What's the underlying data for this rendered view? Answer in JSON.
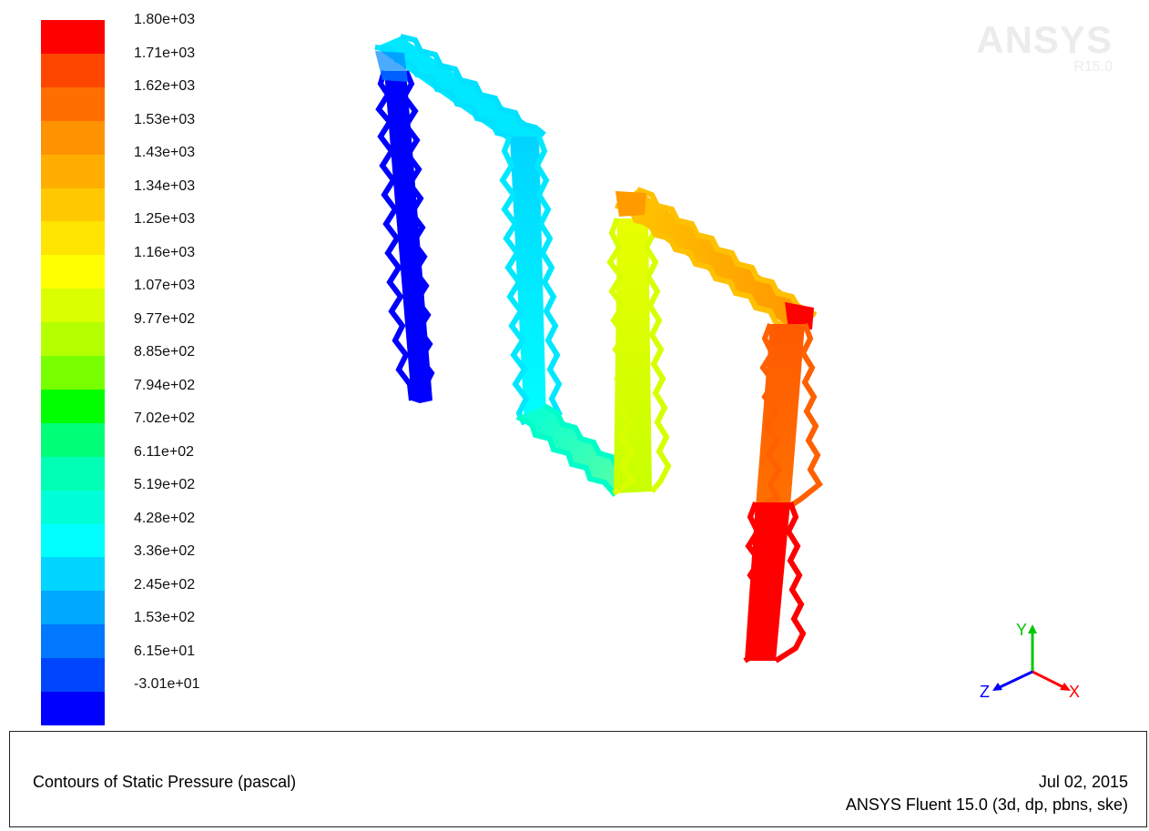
{
  "colorbar": {
    "labels": [
      "1.80e+03",
      "1.71e+03",
      "1.62e+03",
      "1.53e+03",
      "1.43e+03",
      "1.34e+03",
      "1.25e+03",
      "1.16e+03",
      "1.07e+03",
      "9.77e+02",
      "8.85e+02",
      "7.94e+02",
      "7.02e+02",
      "6.11e+02",
      "5.19e+02",
      "4.28e+02",
      "3.36e+02",
      "2.45e+02",
      "1.53e+02",
      "6.15e+01",
      "-3.01e+01"
    ],
    "colors": [
      "#ff0000",
      "#ff4600",
      "#ff6e00",
      "#ff9200",
      "#ffae00",
      "#ffc800",
      "#ffe400",
      "#ffff00",
      "#daff00",
      "#b4ff00",
      "#78ff00",
      "#00ff00",
      "#00ff78",
      "#00ffb4",
      "#00ffd8",
      "#00ffff",
      "#00d4ff",
      "#00a8ff",
      "#0078ff",
      "#0046ff",
      "#0000ff"
    ]
  },
  "watermark": {
    "brand": "ANSYS",
    "version": "R15.0"
  },
  "axes": {
    "y_label": "Y",
    "x_label": "X",
    "z_label": "Z"
  },
  "title_box": {
    "title": "Contours of Static Pressure (pascal)",
    "date": "Jul 02, 2015",
    "software": "ANSYS Fluent 15.0 (3d, dp, pbns, ske)"
  }
}
